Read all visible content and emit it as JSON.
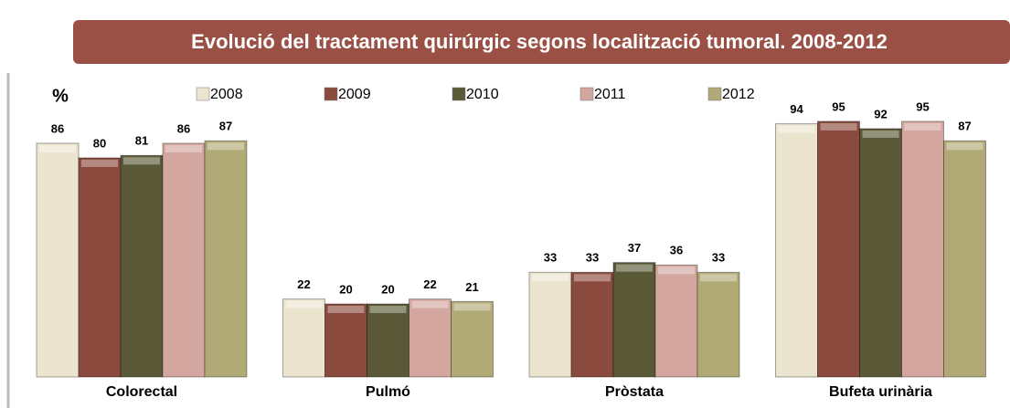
{
  "chart_data": {
    "type": "bar",
    "title": "Evolució del tractament quirúrgic segons localització tumoral. 2008-2012",
    "y_label": "%",
    "categories": [
      "Colorectal",
      "Pulmó",
      "Pròstata",
      "Bufeta urinària"
    ],
    "series": [
      {
        "name": "2008",
        "color": "#ebe5cf",
        "values": [
          86,
          22,
          33,
          94
        ]
      },
      {
        "name": "2009",
        "color": "#8a4a3e",
        "values": [
          80,
          20,
          33,
          95
        ]
      },
      {
        "name": "2010",
        "color": "#5a5937",
        "values": [
          81,
          20,
          37,
          92
        ]
      },
      {
        "name": "2011",
        "color": "#d3a79f",
        "values": [
          86,
          22,
          36,
          95
        ]
      },
      {
        "name": "2012",
        "color": "#b2aa76",
        "values": [
          87,
          21,
          33,
          87
        ]
      }
    ],
    "ylim": [
      -10,
      100
    ]
  }
}
